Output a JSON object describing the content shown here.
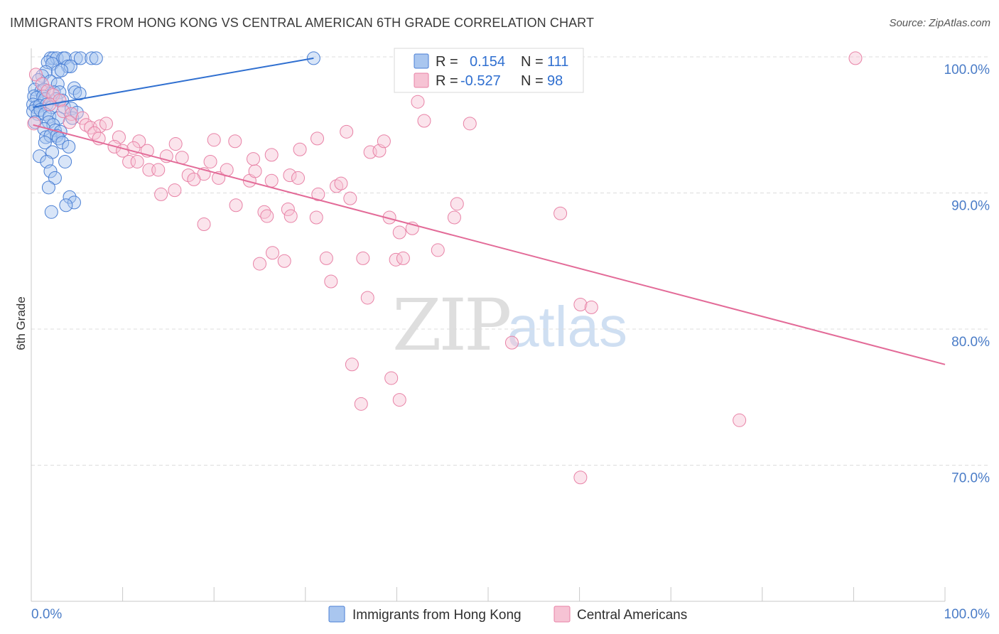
{
  "title": "IMMIGRANTS FROM HONG KONG VS CENTRAL AMERICAN 6TH GRADE CORRELATION CHART",
  "source": "Source: ZipAtlas.com",
  "watermark": {
    "zip": "ZIP",
    "atlas": "atlas"
  },
  "colors": {
    "blue": "#4a7fd4",
    "blue_fill": "#a9c6ef",
    "blue_line": "#2f6fd0",
    "pink": "#e882a6",
    "pink_fill": "#f6c3d4",
    "pink_line": "#e36b98",
    "tick_text": "#4a7cc7",
    "grid": "#dcdcdc"
  },
  "legend": {
    "rows": [
      {
        "r_label": "R =",
        "r_value": "0.154",
        "n_label": "N =",
        "n_value": "111"
      },
      {
        "r_label": "R =",
        "r_value": "-0.527",
        "n_label": "N =",
        "n_value": "98"
      }
    ]
  },
  "bottom_legend": [
    "Immigrants from Hong Kong",
    "Central Americans"
  ],
  "chart_data": {
    "type": "scatter",
    "title": "IMMIGRANTS FROM HONG KONG VS CENTRAL AMERICAN 6TH GRADE CORRELATION CHART",
    "xlabel": "",
    "ylabel": "6th Grade",
    "xlim": [
      0,
      100
    ],
    "ylim": [
      60,
      100
    ],
    "y_ticks": [
      100,
      90,
      80,
      70
    ],
    "y_tick_labels": [
      "100.0%",
      "90.0%",
      "80.0%",
      "70.0%"
    ],
    "x_tick_labels": [
      "0.0%",
      "100.0%"
    ],
    "x_minor_ticks": [
      0,
      10,
      20,
      30,
      40,
      50,
      60,
      70,
      80,
      90,
      100
    ],
    "grid": true,
    "series": [
      {
        "name": "Immigrants from Hong Kong",
        "color": "blue",
        "r": 0.154,
        "n": 111,
        "trend": {
          "x": [
            0.2,
            30.9
          ],
          "y": [
            96.3,
            99.9
          ]
        },
        "points": [
          [
            2.1,
            99.9
          ],
          [
            2.4,
            99.9
          ],
          [
            2.8,
            99.9
          ],
          [
            3.5,
            99.9
          ],
          [
            3.7,
            99.9
          ],
          [
            4.9,
            99.9
          ],
          [
            5.4,
            99.9
          ],
          [
            6.6,
            99.9
          ],
          [
            7.1,
            99.9
          ],
          [
            30.9,
            99.9
          ],
          [
            1.8,
            99.6
          ],
          [
            2.3,
            99.5
          ],
          [
            4.0,
            99.3
          ],
          [
            4.3,
            99.3
          ],
          [
            1.6,
            98.9
          ],
          [
            2.9,
            98.9
          ],
          [
            3.3,
            99.0
          ],
          [
            1.2,
            98.6
          ],
          [
            0.8,
            98.3
          ],
          [
            2.1,
            98.2
          ],
          [
            2.9,
            98.0
          ],
          [
            4.7,
            97.7
          ],
          [
            0.4,
            97.6
          ],
          [
            1.1,
            97.5
          ],
          [
            1.4,
            97.6
          ],
          [
            2.5,
            97.4
          ],
          [
            3.1,
            97.4
          ],
          [
            4.8,
            97.4
          ],
          [
            5.3,
            97.3
          ],
          [
            0.3,
            97.1
          ],
          [
            0.6,
            97.0
          ],
          [
            1.3,
            97.1
          ],
          [
            1.5,
            96.9
          ],
          [
            2.7,
            96.9
          ],
          [
            3.4,
            96.8
          ],
          [
            0.2,
            96.5
          ],
          [
            0.5,
            96.3
          ],
          [
            0.9,
            96.4
          ],
          [
            1.7,
            96.5
          ],
          [
            2.2,
            96.3
          ],
          [
            3.6,
            96.3
          ],
          [
            4.4,
            96.2
          ],
          [
            0.2,
            96.0
          ],
          [
            0.7,
            95.8
          ],
          [
            1.0,
            96.1
          ],
          [
            1.5,
            95.8
          ],
          [
            2.0,
            95.6
          ],
          [
            3.0,
            95.5
          ],
          [
            4.5,
            95.5
          ],
          [
            5.0,
            95.9
          ],
          [
            0.4,
            95.2
          ],
          [
            1.9,
            95.2
          ],
          [
            2.4,
            95.0
          ],
          [
            1.4,
            94.7
          ],
          [
            2.6,
            94.6
          ],
          [
            3.2,
            94.5
          ],
          [
            1.6,
            94.1
          ],
          [
            2.1,
            94.2
          ],
          [
            2.8,
            94.2
          ],
          [
            3.0,
            94.0
          ],
          [
            1.5,
            93.7
          ],
          [
            3.4,
            93.7
          ],
          [
            4.1,
            93.4
          ],
          [
            2.3,
            93.0
          ],
          [
            0.9,
            92.7
          ],
          [
            1.7,
            92.3
          ],
          [
            3.7,
            92.3
          ],
          [
            2.1,
            91.6
          ],
          [
            2.6,
            91.1
          ],
          [
            1.9,
            90.4
          ],
          [
            4.2,
            89.7
          ],
          [
            4.7,
            89.3
          ],
          [
            3.8,
            89.1
          ],
          [
            2.2,
            88.6
          ]
        ]
      },
      {
        "name": "Central Americans",
        "color": "pink",
        "r": -0.527,
        "n": 98,
        "trend": {
          "x": [
            0.2,
            100.0
          ],
          "y": [
            95.0,
            77.4
          ]
        },
        "points": [
          [
            0.5,
            98.7
          ],
          [
            1.2,
            98.0
          ],
          [
            1.8,
            97.5
          ],
          [
            2.4,
            97.2
          ],
          [
            3.1,
            96.8
          ],
          [
            2.0,
            96.5
          ],
          [
            3.5,
            96.0
          ],
          [
            4.4,
            95.8
          ],
          [
            5.6,
            95.5
          ],
          [
            4.2,
            95.2
          ],
          [
            6.0,
            95.0
          ],
          [
            6.5,
            94.8
          ],
          [
            7.5,
            94.9
          ],
          [
            8.2,
            95.1
          ],
          [
            6.9,
            94.4
          ],
          [
            7.4,
            94.0
          ],
          [
            9.6,
            94.1
          ],
          [
            11.8,
            93.8
          ],
          [
            15.8,
            93.6
          ],
          [
            9.1,
            93.4
          ],
          [
            10.0,
            93.1
          ],
          [
            12.7,
            93.1
          ],
          [
            11.2,
            93.3
          ],
          [
            14.8,
            92.7
          ],
          [
            16.5,
            92.6
          ],
          [
            10.7,
            92.3
          ],
          [
            11.6,
            92.3
          ],
          [
            12.9,
            91.7
          ],
          [
            13.9,
            91.7
          ],
          [
            17.2,
            91.3
          ],
          [
            18.9,
            91.4
          ],
          [
            19.6,
            92.3
          ],
          [
            20.5,
            91.1
          ],
          [
            21.4,
            91.7
          ],
          [
            17.8,
            91.0
          ],
          [
            15.7,
            90.2
          ],
          [
            14.2,
            89.9
          ],
          [
            23.9,
            90.9
          ],
          [
            24.5,
            91.6
          ],
          [
            26.3,
            90.9
          ],
          [
            28.3,
            91.3
          ],
          [
            29.2,
            91.1
          ],
          [
            24.3,
            92.5
          ],
          [
            26.3,
            92.8
          ],
          [
            20.0,
            93.9
          ],
          [
            22.3,
            93.8
          ],
          [
            29.4,
            93.2
          ],
          [
            31.3,
            94.0
          ],
          [
            34.5,
            94.5
          ],
          [
            37.1,
            93.0
          ],
          [
            38.1,
            93.1
          ],
          [
            38.6,
            93.8
          ],
          [
            31.4,
            89.9
          ],
          [
            33.4,
            90.5
          ],
          [
            33.9,
            90.7
          ],
          [
            34.9,
            89.6
          ],
          [
            28.1,
            88.8
          ],
          [
            25.5,
            88.6
          ],
          [
            25.8,
            88.3
          ],
          [
            28.4,
            88.3
          ],
          [
            31.2,
            88.2
          ],
          [
            22.4,
            89.1
          ],
          [
            18.9,
            87.7
          ],
          [
            39.2,
            88.2
          ],
          [
            40.3,
            87.1
          ],
          [
            41.7,
            87.4
          ],
          [
            46.3,
            88.2
          ],
          [
            46.6,
            89.2
          ],
          [
            57.9,
            88.5
          ],
          [
            44.5,
            85.8
          ],
          [
            39.9,
            85.1
          ],
          [
            40.7,
            85.2
          ],
          [
            36.3,
            85.2
          ],
          [
            32.3,
            85.2
          ],
          [
            26.4,
            85.6
          ],
          [
            25.0,
            84.8
          ],
          [
            27.7,
            85.0
          ],
          [
            32.8,
            83.5
          ],
          [
            36.8,
            82.3
          ],
          [
            60.1,
            81.8
          ],
          [
            61.3,
            81.6
          ],
          [
            52.6,
            79.0
          ],
          [
            35.1,
            77.4
          ],
          [
            39.4,
            76.4
          ],
          [
            36.1,
            74.5
          ],
          [
            40.3,
            74.8
          ],
          [
            77.5,
            73.3
          ],
          [
            60.1,
            69.1
          ],
          [
            42.3,
            96.7
          ],
          [
            43.0,
            95.3
          ],
          [
            48.0,
            95.1
          ],
          [
            90.2,
            99.9
          ],
          [
            0.3,
            95.1
          ]
        ]
      }
    ]
  }
}
